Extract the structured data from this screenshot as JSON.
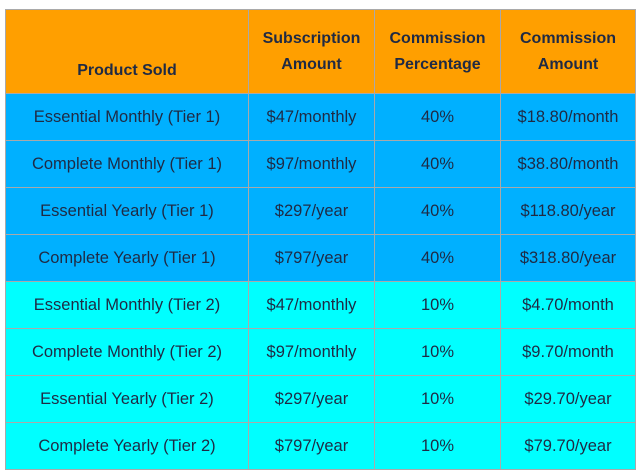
{
  "table": {
    "headers": [
      {
        "line1": "Product Sold",
        "line2": ""
      },
      {
        "line1": "Subscription",
        "line2": "Amount"
      },
      {
        "line1": "Commission",
        "line2": "Percentage"
      },
      {
        "line1": "Commission",
        "line2": "Amount"
      }
    ],
    "rows": [
      {
        "product": "Essential Monthly (Tier 1)",
        "subscription": "$47/monthly",
        "percentage": "40%",
        "commission": "$18.80/month"
      },
      {
        "product": "Complete Monthly (Tier 1)",
        "subscription": "$97/monthly",
        "percentage": "40%",
        "commission": "$38.80/month"
      },
      {
        "product": "Essential Yearly (Tier 1)",
        "subscription": "$297/year",
        "percentage": "40%",
        "commission": "$118.80/year"
      },
      {
        "product": "Complete Yearly (Tier 1)",
        "subscription": "$797/year",
        "percentage": "40%",
        "commission": "$318.80/year"
      },
      {
        "product": "Essential Monthly (Tier 2)",
        "subscription": "$47/monthly",
        "percentage": "10%",
        "commission": "$4.70/month"
      },
      {
        "product": "Complete Monthly (Tier 2)",
        "subscription": "$97/monthly",
        "percentage": "10%",
        "commission": "$9.70/month"
      },
      {
        "product": "Essential Yearly (Tier 2)",
        "subscription": "$297/year",
        "percentage": "10%",
        "commission": "$29.70/year"
      },
      {
        "product": "Complete Yearly (Tier 2)",
        "subscription": "$797/year",
        "percentage": "10%",
        "commission": "$79.70/year"
      }
    ]
  },
  "colors": {
    "header": "#ff9f00",
    "tier1": "#00b0ff",
    "tier2": "#00ffff",
    "text": "#1f2a44",
    "border": "#a9a9a9"
  }
}
